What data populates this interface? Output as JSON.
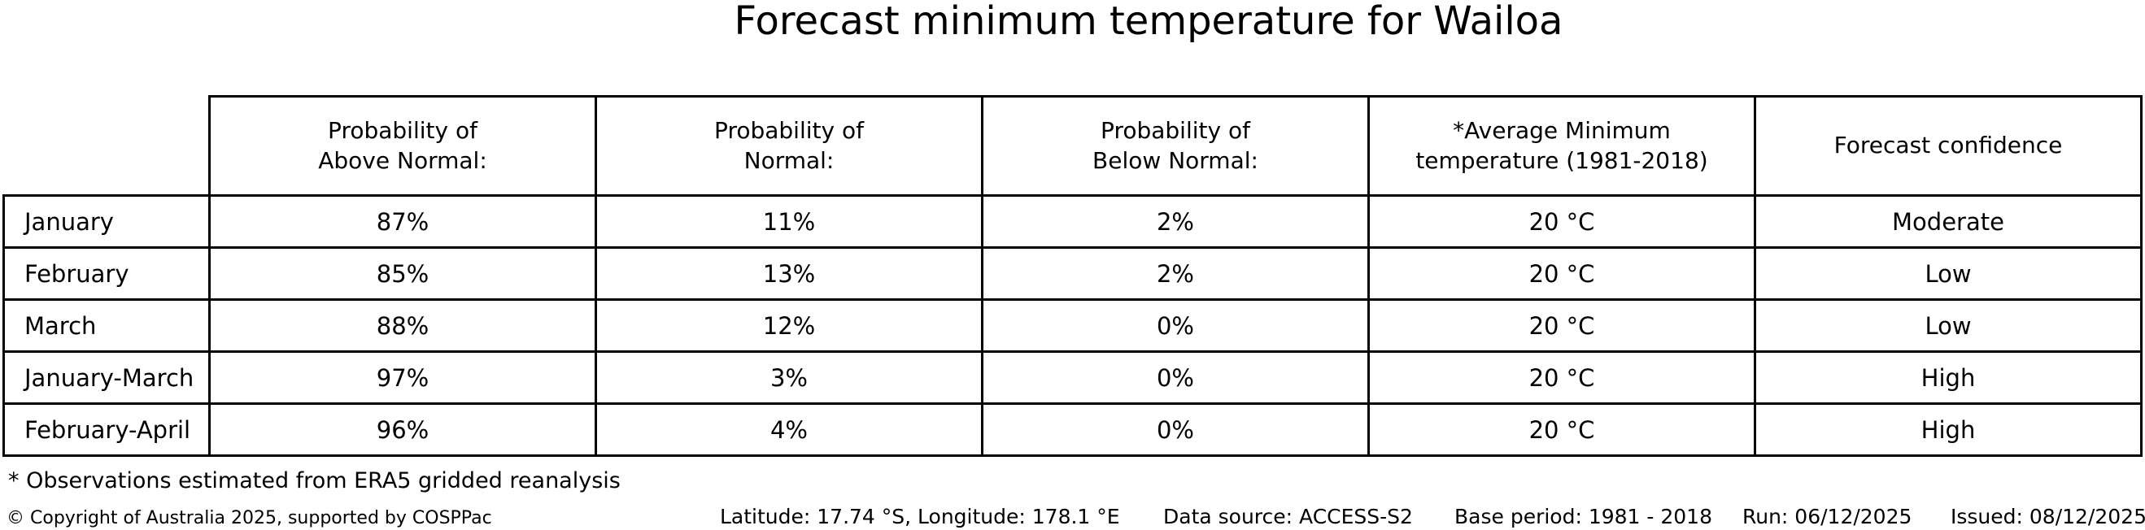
{
  "title": "Forecast minimum temperature for Wailoa",
  "header_lines": [
    "Probability of\nAbove Normal:",
    "Probability of\nNormal:",
    "Probability of\nBelow Normal:",
    "*Average Minimum\ntemperature (1981-2018)",
    "Forecast confidence"
  ],
  "chart_data": {
    "type": "table",
    "title": "Forecast minimum temperature for Wailoa",
    "columns": [
      "Probability of Above Normal:",
      "Probability of Normal:",
      "Probability of Below Normal:",
      "*Average Minimum temperature (1981-2018)",
      "Forecast confidence"
    ],
    "row_labels": [
      "January",
      "February",
      "March",
      "January-March",
      "February-April"
    ],
    "rows": [
      [
        "87%",
        "11%",
        "2%",
        "20 °C",
        "Moderate"
      ],
      [
        "85%",
        "13%",
        "2%",
        "20 °C",
        "Low"
      ],
      [
        "88%",
        "12%",
        "0%",
        "20 °C",
        "Low"
      ],
      [
        "97%",
        "3%",
        "0%",
        "20 °C",
        "High"
      ],
      [
        "96%",
        "4%",
        "0%",
        "20 °C",
        "High"
      ]
    ]
  },
  "footnote": "* Observations estimated from ERA5 gridded reanalysis",
  "footer": {
    "copyright": "© Copyright of Australia 2025, supported by COSPPac",
    "location": "Latitude: 17.74 °S, Longitude: 178.1 °E",
    "data_source": "Data source: ACCESS-S2",
    "base_period": "Base period: 1981 - 2018",
    "run": "Run: 06/12/2025",
    "issued": "Issued: 08/12/2025"
  },
  "colors": {
    "text": "#000000",
    "border": "#000000",
    "background": "#ffffff"
  }
}
